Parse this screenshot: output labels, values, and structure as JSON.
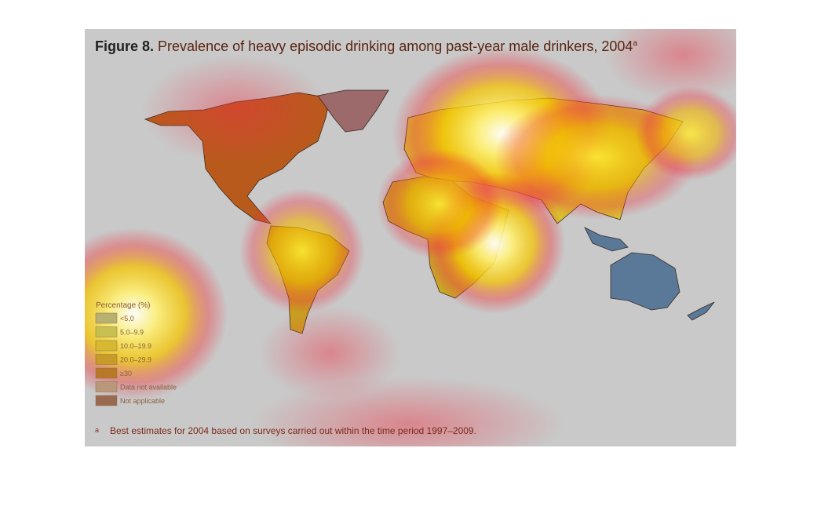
{
  "figure_label": "Figure 8.",
  "title": "Prevalence of heavy episodic drinking among past-year male drinkers, 2004",
  "title_note": "a",
  "legend": {
    "title": "Percentage (%)",
    "items": [
      "<5.0",
      "5.0–9.9",
      "10.0–19.9",
      "20.0–29.9",
      "≥30",
      "Data not available",
      "Not applicable"
    ]
  },
  "footnote": {
    "marker": "a",
    "text": "Best estimates for 2004 based on surveys carried out within the time period 1997–2009."
  }
}
